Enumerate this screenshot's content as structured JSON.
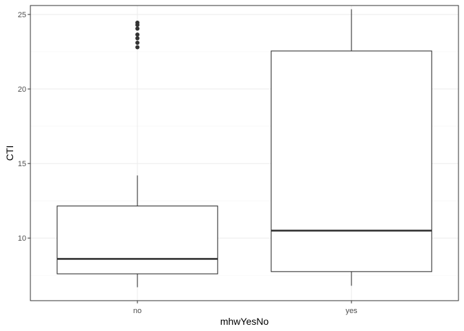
{
  "chart_data": {
    "type": "boxplot",
    "title": "",
    "xlabel": "mhwYesNo",
    "ylabel": "CTI",
    "categories": [
      "no",
      "yes"
    ],
    "ylim": [
      5.8,
      25.6
    ],
    "yticks": [
      10,
      15,
      20,
      25
    ],
    "grid": true,
    "boxes": [
      {
        "category": "no",
        "whisker_low": 6.7,
        "q1": 7.6,
        "median": 8.6,
        "q3": 12.15,
        "whisker_high": 14.2,
        "outliers": [
          22.8,
          23.1,
          23.4,
          23.65,
          24.05,
          24.3,
          24.45
        ]
      },
      {
        "category": "yes",
        "whisker_low": 6.8,
        "q1": 7.75,
        "median": 10.5,
        "q3": 22.55,
        "whisker_high": 25.35,
        "outliers": []
      }
    ],
    "colors": {
      "box_stroke": "#333333",
      "box_fill": "#ffffff",
      "grid_major": "#ebebeb",
      "grid_minor": "#f5f5f5",
      "panel_border": "#333333",
      "point": "#333333"
    }
  }
}
